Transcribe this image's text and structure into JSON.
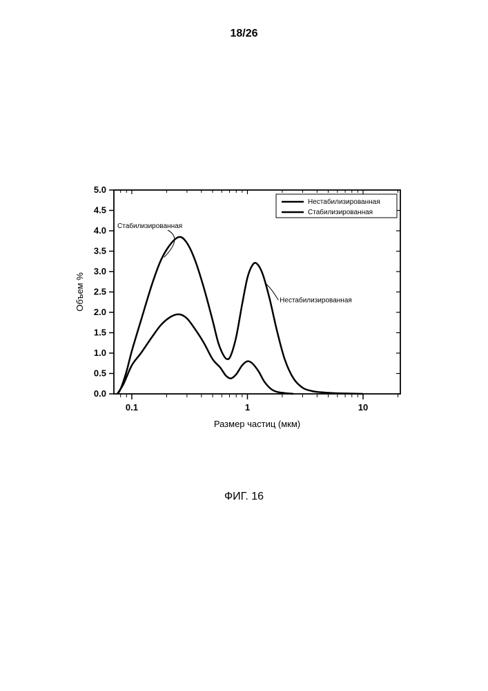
{
  "page_number": "18/26",
  "figure_caption": "ФИГ. 16",
  "chart": {
    "type": "line",
    "background_color": "#ffffff",
    "axis_color": "#000000",
    "line_color": "#000000",
    "line_width": 2.5,
    "xlabel": "Размер частиц (мкм)",
    "ylabel": "Объем %",
    "label_fontsize": 13,
    "tick_fontsize": 13,
    "x_scale": "log",
    "x_ticks": [
      0.1,
      1,
      10
    ],
    "x_tick_labels": [
      "0.1",
      "1",
      "10"
    ],
    "x_range": [
      0.07,
      21
    ],
    "y_scale": "linear",
    "y_range": [
      0.0,
      5.0
    ],
    "y_ticks": [
      0.0,
      0.5,
      1.0,
      1.5,
      2.0,
      2.5,
      3.0,
      3.5,
      4.0,
      4.5,
      5.0
    ],
    "y_tick_labels": [
      "0.0",
      "0.5",
      "1.0",
      "1.5",
      "2.0",
      "2.5",
      "3.0",
      "3.5",
      "4.0",
      "4.5",
      "5.0"
    ],
    "grid": false,
    "legend": {
      "box_stroke": "#000000",
      "box_fill": "#ffffff",
      "items": [
        {
          "label": "Нестабилизированная",
          "sample_stroke": "#000000"
        },
        {
          "label": "Стабилизированная",
          "sample_stroke": "#000000"
        }
      ]
    },
    "annotations": [
      {
        "text": "Стабилизированная",
        "target": "stab-peak"
      },
      {
        "text": "Нестабилизированная",
        "target": "destab-peak2"
      }
    ],
    "series": [
      {
        "name": "Стабилизированная",
        "data": [
          [
            0.075,
            0.0
          ],
          [
            0.085,
            0.25
          ],
          [
            0.1,
            0.7
          ],
          [
            0.12,
            1.0
          ],
          [
            0.15,
            1.4
          ],
          [
            0.18,
            1.7
          ],
          [
            0.22,
            1.9
          ],
          [
            0.26,
            1.95
          ],
          [
            0.3,
            1.85
          ],
          [
            0.35,
            1.6
          ],
          [
            0.42,
            1.25
          ],
          [
            0.5,
            0.85
          ],
          [
            0.58,
            0.65
          ],
          [
            0.65,
            0.45
          ],
          [
            0.72,
            0.38
          ],
          [
            0.8,
            0.48
          ],
          [
            0.9,
            0.7
          ],
          [
            1.0,
            0.8
          ],
          [
            1.1,
            0.75
          ],
          [
            1.25,
            0.55
          ],
          [
            1.4,
            0.3
          ],
          [
            1.6,
            0.12
          ],
          [
            1.8,
            0.05
          ],
          [
            2.1,
            0.02
          ],
          [
            2.5,
            0.0
          ]
        ]
      },
      {
        "name": "Нестабилизированная",
        "data": [
          [
            0.075,
            0.0
          ],
          [
            0.08,
            0.12
          ],
          [
            0.09,
            0.55
          ],
          [
            0.1,
            1.05
          ],
          [
            0.12,
            1.8
          ],
          [
            0.15,
            2.7
          ],
          [
            0.18,
            3.3
          ],
          [
            0.22,
            3.7
          ],
          [
            0.26,
            3.85
          ],
          [
            0.3,
            3.7
          ],
          [
            0.35,
            3.3
          ],
          [
            0.42,
            2.6
          ],
          [
            0.5,
            1.8
          ],
          [
            0.56,
            1.25
          ],
          [
            0.62,
            0.95
          ],
          [
            0.67,
            0.85
          ],
          [
            0.72,
            0.95
          ],
          [
            0.8,
            1.4
          ],
          [
            0.9,
            2.2
          ],
          [
            1.0,
            2.85
          ],
          [
            1.1,
            3.15
          ],
          [
            1.2,
            3.2
          ],
          [
            1.35,
            2.95
          ],
          [
            1.55,
            2.35
          ],
          [
            1.8,
            1.55
          ],
          [
            2.1,
            0.85
          ],
          [
            2.5,
            0.38
          ],
          [
            3.0,
            0.15
          ],
          [
            3.6,
            0.07
          ],
          [
            4.3,
            0.04
          ],
          [
            5.5,
            0.02
          ],
          [
            7.0,
            0.01
          ],
          [
            10.0,
            0.0
          ]
        ]
      }
    ]
  }
}
